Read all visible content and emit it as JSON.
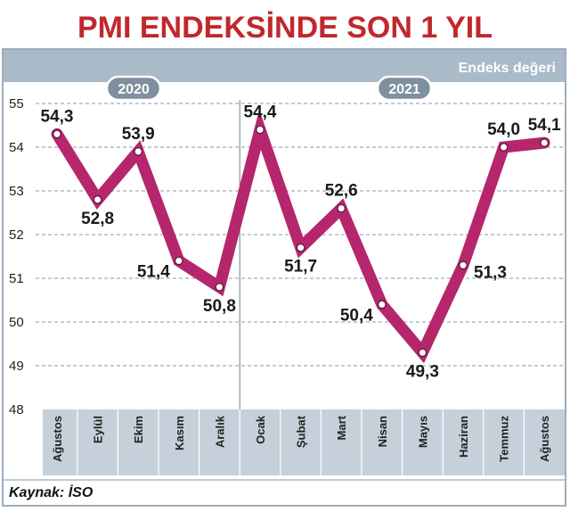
{
  "title": "PMI ENDEKSİNDE SON 1 YIL",
  "unit_label": "Endeks değeri",
  "year_badges": [
    "2020",
    "2021"
  ],
  "source_label": "Kaynak: İSO",
  "colors": {
    "title": "#c0282d",
    "line": "#b5266d",
    "header_band": "#a9bac9",
    "badge_fill": "#7f8f9f",
    "xaxis_band": "#c5d0da",
    "frame": "#7f93a6",
    "grid": "#8a9aa8"
  },
  "chart_data": {
    "type": "line",
    "title": "PMI ENDEKSİNDE SON 1 YIL",
    "ylabel": "Endeks değeri",
    "xlabel": "",
    "categories": [
      "Ağustos",
      "Eylül",
      "Ekim",
      "Kasım",
      "Aralık",
      "Ocak",
      "Şubat",
      "Mart",
      "Nisan",
      "Mayıs",
      "Haziran",
      "Temmuz",
      "Ağustos"
    ],
    "values": [
      54.3,
      52.8,
      53.9,
      51.4,
      50.8,
      54.4,
      51.7,
      52.6,
      50.4,
      49.3,
      51.3,
      54.0,
      54.1
    ],
    "value_labels": [
      "54,3",
      "52,8",
      "53,9",
      "51,4",
      "50,8",
      "54,4",
      "51,7",
      "52,6",
      "50,4",
      "49,3",
      "51,3",
      "54,0",
      "54,1"
    ],
    "label_position": [
      "above",
      "below",
      "above",
      "left",
      "below",
      "above",
      "below",
      "above",
      "left",
      "below",
      "right",
      "above",
      "above"
    ],
    "ylim": [
      48,
      55
    ],
    "yticks": [
      "48",
      "49",
      "50",
      "51",
      "52",
      "53",
      "54",
      "55"
    ],
    "grid": true,
    "year_divider_after_index": 4,
    "source": "Kaynak: İSO"
  }
}
